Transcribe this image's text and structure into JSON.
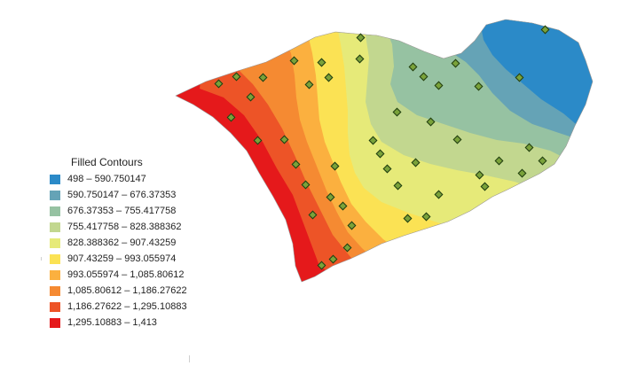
{
  "legend": {
    "title": "Filled Contours",
    "classes": [
      {
        "label": "498 – 590.750147",
        "color": "#2b8ac8"
      },
      {
        "label": "590.750147 – 676.37353",
        "color": "#65a3b6"
      },
      {
        "label": "676.37353 – 755.417758",
        "color": "#96c2a2"
      },
      {
        "label": "755.417758 – 828.388362",
        "color": "#c2d78f"
      },
      {
        "label": "828.388362 – 907.43259",
        "color": "#e6ea79"
      },
      {
        "label": "907.43259 – 993.055974",
        "color": "#fbe254"
      },
      {
        "label": "993.055974 – 1,085.80612",
        "color": "#fbb03f"
      },
      {
        "label": "1,085.80612 – 1,186.27622",
        "color": "#f58a32"
      },
      {
        "label": "1,186.27622 – 1,295.10883",
        "color": "#ed5427"
      },
      {
        "label": "1,295.10883 – 1,413",
        "color": "#e5191b"
      }
    ]
  },
  "colors": {
    "sample_point_fill": "#7aa23a",
    "sample_point_stroke": "#1f3b10",
    "background": "#ffffff"
  }
}
